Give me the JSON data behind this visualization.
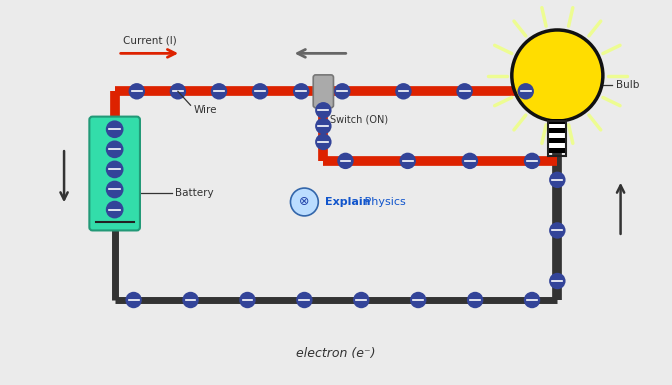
{
  "bg_color": "#ebebeb",
  "wire_red_color": "#dd2200",
  "wire_dark_color": "#333333",
  "electron_fill": "#334499",
  "electron_center": "#6688cc",
  "battery_fill": "#33ddaa",
  "battery_border": "#229977",
  "bulb_yellow": "#ffdd00",
  "bulb_outline": "#111111",
  "bulb_glow": "#eeff88",
  "switch_fill": "#aaaaaa",
  "switch_border": "#777777",
  "current_label": "Current (I)",
  "wire_label": "Wire",
  "switch_label": "Switch (ON)",
  "battery_label": "Battery",
  "bulb_label": "Bulb",
  "explain_text": "Explain Physics",
  "electron_label": "electron (e⁻)",
  "text_color": "#333333",
  "explain_blue": "#1155cc",
  "explain_bold": "Explain",
  "explain_normal": " Physics"
}
